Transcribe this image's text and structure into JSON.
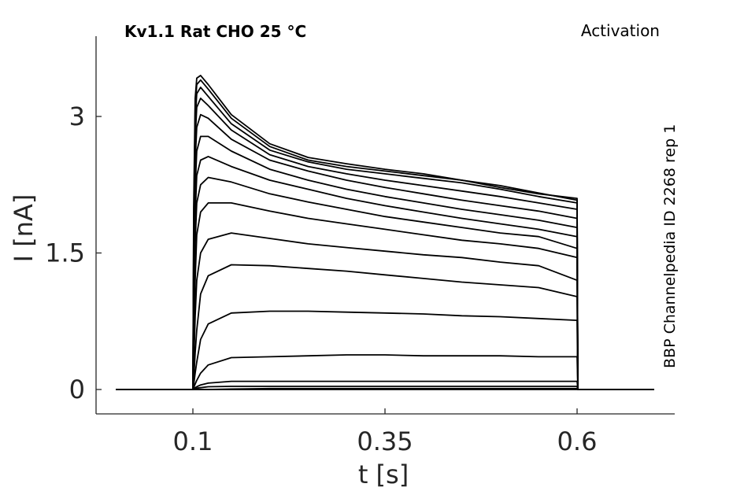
{
  "chart_data": {
    "type": "line",
    "title": "Kv1.1  Rat  CHO  25 °C",
    "subtitle": "Activation",
    "side_note": "BBP Channelpedia ID 2268 rep 1",
    "xlabel": "t [s]",
    "ylabel": "I [nA]",
    "xlim": [
      0.0,
      0.75
    ],
    "ylim": [
      -0.27,
      3.9
    ],
    "xticks": [
      0.1,
      0.35,
      0.6
    ],
    "xtick_labels": [
      "0.1",
      "0.35",
      "0.6"
    ],
    "yticks": [
      0,
      1.5,
      3
    ],
    "ytick_labels": [
      "0",
      "1.5",
      "3"
    ],
    "grid": false,
    "line_color": "#000000",
    "x": [
      0.0,
      0.1,
      0.101,
      0.103,
      0.105,
      0.11,
      0.12,
      0.15,
      0.2,
      0.25,
      0.3,
      0.35,
      0.4,
      0.45,
      0.5,
      0.55,
      0.6,
      0.601,
      0.7
    ],
    "series": [
      {
        "values": [
          0,
          0,
          0,
          0,
          0,
          0,
          0,
          0,
          0,
          0,
          0,
          0,
          0,
          0,
          0,
          0,
          0,
          0,
          0
        ]
      },
      {
        "values": [
          0,
          0,
          0,
          0,
          0,
          0,
          0,
          0.005,
          0.01,
          0.01,
          0.01,
          0.01,
          0.01,
          0.01,
          0.01,
          0.01,
          0.01,
          0,
          0
        ]
      },
      {
        "values": [
          0,
          0,
          0.005,
          0.01,
          0.015,
          0.02,
          0.03,
          0.035,
          0.035,
          0.035,
          0.035,
          0.035,
          0.035,
          0.035,
          0.035,
          0.035,
          0.035,
          0,
          0
        ]
      },
      {
        "values": [
          0,
          0,
          0.01,
          0.02,
          0.03,
          0.05,
          0.07,
          0.09,
          0.09,
          0.09,
          0.09,
          0.09,
          0.09,
          0.09,
          0.09,
          0.09,
          0.09,
          0,
          0
        ]
      },
      {
        "values": [
          0,
          0,
          0.02,
          0.06,
          0.1,
          0.18,
          0.27,
          0.35,
          0.36,
          0.37,
          0.38,
          0.38,
          0.37,
          0.37,
          0.37,
          0.36,
          0.36,
          0,
          0
        ]
      },
      {
        "values": [
          0,
          0,
          0.05,
          0.18,
          0.3,
          0.55,
          0.72,
          0.84,
          0.86,
          0.86,
          0.85,
          0.84,
          0.83,
          0.81,
          0.8,
          0.78,
          0.76,
          0,
          0
        ]
      },
      {
        "values": [
          0,
          0,
          0.1,
          0.4,
          0.65,
          1.05,
          1.25,
          1.37,
          1.36,
          1.33,
          1.3,
          1.26,
          1.22,
          1.18,
          1.15,
          1.12,
          1.02,
          0,
          0
        ]
      },
      {
        "values": [
          0,
          0,
          0.25,
          0.8,
          1.2,
          1.5,
          1.65,
          1.72,
          1.66,
          1.6,
          1.56,
          1.52,
          1.48,
          1.45,
          1.4,
          1.36,
          1.2,
          0,
          0
        ]
      },
      {
        "values": [
          0,
          0,
          0.4,
          1.2,
          1.7,
          1.95,
          2.05,
          2.05,
          1.96,
          1.88,
          1.82,
          1.76,
          1.7,
          1.64,
          1.6,
          1.55,
          1.45,
          0,
          0
        ]
      },
      {
        "values": [
          0,
          0,
          0.6,
          1.6,
          2.05,
          2.25,
          2.33,
          2.28,
          2.15,
          2.06,
          1.98,
          1.9,
          1.84,
          1.78,
          1.72,
          1.68,
          1.55,
          0,
          0
        ]
      },
      {
        "values": [
          0,
          0,
          0.8,
          1.9,
          2.35,
          2.52,
          2.56,
          2.45,
          2.3,
          2.2,
          2.1,
          2.02,
          1.95,
          1.88,
          1.82,
          1.76,
          1.68,
          0,
          0
        ]
      },
      {
        "values": [
          0,
          0,
          1.0,
          2.2,
          2.62,
          2.78,
          2.78,
          2.62,
          2.42,
          2.3,
          2.2,
          2.12,
          2.05,
          1.98,
          1.92,
          1.86,
          1.78,
          0,
          0
        ]
      },
      {
        "values": [
          0,
          0,
          1.2,
          2.5,
          2.88,
          3.02,
          2.98,
          2.75,
          2.52,
          2.4,
          2.3,
          2.22,
          2.15,
          2.08,
          2.02,
          1.96,
          1.88,
          0,
          0
        ]
      },
      {
        "values": [
          0,
          0,
          1.4,
          2.75,
          3.1,
          3.2,
          3.12,
          2.85,
          2.58,
          2.45,
          2.37,
          2.3,
          2.24,
          2.18,
          2.12,
          2.05,
          1.98,
          0,
          0
        ]
      },
      {
        "values": [
          0,
          0,
          1.6,
          2.95,
          3.25,
          3.32,
          3.22,
          2.92,
          2.63,
          2.5,
          2.42,
          2.37,
          2.32,
          2.27,
          2.2,
          2.12,
          2.05,
          0,
          0
        ]
      },
      {
        "values": [
          0,
          0,
          1.8,
          3.1,
          3.35,
          3.4,
          3.3,
          2.98,
          2.67,
          2.52,
          2.45,
          2.4,
          2.35,
          2.3,
          2.24,
          2.16,
          2.08,
          0,
          0
        ]
      },
      {
        "values": [
          0,
          0,
          2.0,
          3.2,
          3.42,
          3.45,
          3.35,
          3.02,
          2.7,
          2.55,
          2.48,
          2.42,
          2.37,
          2.3,
          2.22,
          2.15,
          2.1,
          0,
          0
        ]
      }
    ]
  }
}
